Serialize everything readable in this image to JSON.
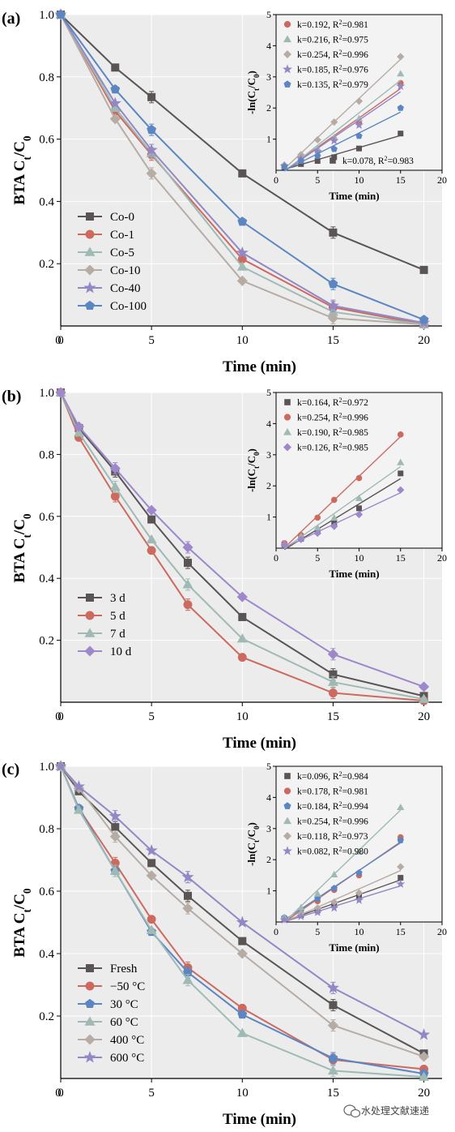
{
  "chart_data": [
    {
      "type": "line",
      "panel_label": "(a)",
      "xlabel": "Time (min)",
      "ylabel": "BTA C_t/C_0",
      "xlim": [
        0,
        21
      ],
      "ylim": [
        0,
        1.0
      ],
      "xticks": [
        0,
        5,
        10,
        15,
        20
      ],
      "yticks": [
        0.2,
        0.4,
        0.6,
        0.8,
        1.0
      ],
      "grid": true,
      "legend_position": "lower-left",
      "x": [
        0,
        3,
        5,
        10,
        15,
        20
      ],
      "series": [
        {
          "name": "Co-0",
          "color": "#5a5454",
          "marker": "square",
          "values": [
            1.0,
            0.83,
            0.735,
            0.49,
            0.3,
            0.18
          ]
        },
        {
          "name": "Co-1",
          "color": "#cc6a60",
          "marker": "circle",
          "values": [
            1.0,
            0.69,
            0.55,
            0.215,
            0.06,
            0.005
          ]
        },
        {
          "name": "Co-5",
          "color": "#9fbab4",
          "marker": "triangle",
          "values": [
            1.0,
            0.7,
            0.555,
            0.19,
            0.045,
            0.005
          ]
        },
        {
          "name": "Co-10",
          "color": "#b7aca4",
          "marker": "diamond",
          "values": [
            1.0,
            0.665,
            0.49,
            0.145,
            0.025,
            0.005
          ]
        },
        {
          "name": "Co-40",
          "color": "#9288c6",
          "marker": "star",
          "values": [
            1.0,
            0.715,
            0.565,
            0.235,
            0.065,
            0.01
          ]
        },
        {
          "name": "Co-100",
          "color": "#5c86c2",
          "marker": "pentagon",
          "values": [
            1.0,
            0.76,
            0.63,
            0.335,
            0.135,
            0.02
          ]
        }
      ],
      "inset": {
        "xlabel": "Time (min)",
        "ylabel": "-ln(C_t/C_0)",
        "xlim": [
          0,
          20
        ],
        "ylim": [
          0,
          5
        ],
        "xticks": [
          0,
          5,
          10,
          15,
          20
        ],
        "yticks": [
          1,
          2,
          3,
          4,
          5
        ],
        "x": [
          1,
          3,
          5,
          7,
          10,
          15
        ],
        "series": [
          {
            "name": "Co-0",
            "color": "#5a5454",
            "marker": "square",
            "label": "k=0.078, R²=0.983",
            "values": [
              0.1,
              0.2,
              0.3,
              0.42,
              0.7,
              1.18
            ]
          },
          {
            "name": "Co-1",
            "color": "#cc6a60",
            "marker": "circle",
            "label": "k=0.192, R²=0.981",
            "values": [
              0.15,
              0.4,
              0.62,
              1.0,
              1.53,
              2.8
            ]
          },
          {
            "name": "Co-5",
            "color": "#9fbab4",
            "marker": "triangle",
            "label": "k=0.216, R²=0.975",
            "values": [
              0.15,
              0.44,
              0.7,
              1.05,
              1.66,
              3.1
            ]
          },
          {
            "name": "Co-10",
            "color": "#b7aca4",
            "marker": "diamond",
            "label": "k=0.254, R²=0.996",
            "values": [
              0.17,
              0.5,
              0.98,
              1.55,
              2.22,
              3.65
            ]
          },
          {
            "name": "Co-40",
            "color": "#9288c6",
            "marker": "star",
            "label": "k=0.185, R²=0.976",
            "values": [
              0.14,
              0.38,
              0.6,
              0.95,
              1.45,
              2.7
            ]
          },
          {
            "name": "Co-100",
            "color": "#5c86c2",
            "marker": "pentagon",
            "label": "k=0.135, R²=0.979",
            "values": [
              0.12,
              0.3,
              0.46,
              0.68,
              1.1,
              2.0
            ]
          }
        ],
        "legend_order": [
          1,
          2,
          3,
          4,
          5
        ],
        "extra_label_series": 0
      }
    },
    {
      "type": "line",
      "panel_label": "(b)",
      "xlabel": "Time (min)",
      "ylabel": "BTA C_t/C_0",
      "xlim": [
        0,
        21
      ],
      "ylim": [
        0,
        1.0
      ],
      "xticks": [
        0,
        5,
        10,
        15,
        20
      ],
      "yticks": [
        0.2,
        0.4,
        0.6,
        0.8,
        1.0
      ],
      "grid": true,
      "legend_position": "lower-left",
      "x": [
        0,
        1,
        3,
        5,
        7,
        10,
        15,
        20
      ],
      "series": [
        {
          "name": "3 d",
          "color": "#5a5454",
          "marker": "square",
          "values": [
            1.0,
            0.885,
            0.745,
            0.59,
            0.45,
            0.275,
            0.09,
            0.02
          ]
        },
        {
          "name": "5 d",
          "color": "#cc6a60",
          "marker": "circle",
          "values": [
            1.0,
            0.855,
            0.665,
            0.49,
            0.315,
            0.145,
            0.03,
            0.005
          ]
        },
        {
          "name": "7 d",
          "color": "#9fbab4",
          "marker": "triangle",
          "values": [
            1.0,
            0.87,
            0.695,
            0.525,
            0.38,
            0.205,
            0.065,
            0.01
          ]
        },
        {
          "name": "10 d",
          "color": "#9d88cc",
          "marker": "diamond",
          "values": [
            1.0,
            0.89,
            0.755,
            0.62,
            0.5,
            0.34,
            0.155,
            0.05
          ]
        }
      ],
      "inset": {
        "xlabel": "Time (min)",
        "ylabel": "-ln(C_t/C_0)",
        "xlim": [
          0,
          20
        ],
        "ylim": [
          0,
          5
        ],
        "xticks": [
          0,
          5,
          10,
          15,
          20
        ],
        "yticks": [
          1,
          2,
          3,
          4,
          5
        ],
        "x": [
          1,
          3,
          5,
          7,
          10,
          15
        ],
        "series": [
          {
            "name": "3 d",
            "color": "#5a5454",
            "marker": "square",
            "label": "k=0.164, R²=0.972",
            "values": [
              0.12,
              0.3,
              0.53,
              0.8,
              1.28,
              2.4
            ]
          },
          {
            "name": "5 d",
            "color": "#cc6a60",
            "marker": "circle",
            "label": "k=0.254, R²=0.996",
            "values": [
              0.16,
              0.42,
              0.98,
              1.55,
              2.25,
              3.65
            ]
          },
          {
            "name": "7 d",
            "color": "#9fbab4",
            "marker": "triangle",
            "label": "k=0.190, R²=0.985",
            "values": [
              0.14,
              0.37,
              0.65,
              0.97,
              1.6,
              2.75
            ]
          },
          {
            "name": "10 d",
            "color": "#9d88cc",
            "marker": "diamond",
            "label": "k=0.126, R²=0.985",
            "values": [
              0.11,
              0.28,
              0.48,
              0.7,
              1.08,
              1.87
            ]
          }
        ],
        "legend_order": [
          0,
          1,
          2,
          3
        ]
      }
    },
    {
      "type": "line",
      "panel_label": "(c)",
      "xlabel": "Time (min)",
      "ylabel": "BTA C_t/C_0",
      "xlim": [
        0,
        21
      ],
      "ylim": [
        0,
        1.0
      ],
      "xticks": [
        0,
        5,
        10,
        15,
        20
      ],
      "yticks": [
        0.2,
        0.4,
        0.6,
        0.8,
        1.0
      ],
      "grid": true,
      "legend_position": "lower-left",
      "x": [
        0,
        1,
        3,
        5,
        7,
        10,
        15,
        20
      ],
      "series": [
        {
          "name": "Fresh",
          "color": "#5a5454",
          "marker": "square",
          "values": [
            1.0,
            0.92,
            0.805,
            0.69,
            0.585,
            0.44,
            0.235,
            0.08
          ]
        },
        {
          "name": "−50 °C",
          "color": "#cc6a60",
          "marker": "circle",
          "values": [
            1.0,
            0.865,
            0.69,
            0.51,
            0.355,
            0.225,
            0.06,
            0.03
          ]
        },
        {
          "name": "30 °C",
          "color": "#5c86c2",
          "marker": "pentagon",
          "values": [
            1.0,
            0.865,
            0.665,
            0.47,
            0.34,
            0.205,
            0.065,
            0.015
          ]
        },
        {
          "name": "60 °C",
          "color": "#9fbab4",
          "marker": "triangle",
          "values": [
            1.0,
            0.86,
            0.665,
            0.475,
            0.315,
            0.145,
            0.025,
            0.005
          ]
        },
        {
          "name": "400 °C",
          "color": "#b7aca4",
          "marker": "diamond",
          "values": [
            1.0,
            0.93,
            0.775,
            0.65,
            0.545,
            0.4,
            0.17,
            0.07
          ]
        },
        {
          "name": "600 °C",
          "color": "#9288c6",
          "marker": "star",
          "values": [
            1.0,
            0.935,
            0.84,
            0.73,
            0.645,
            0.5,
            0.29,
            0.14
          ]
        }
      ],
      "inset": {
        "xlabel": "Time (min)",
        "ylabel": "-ln(C_t/C_0)",
        "xlim": [
          0,
          20
        ],
        "ylim": [
          0,
          5
        ],
        "xticks": [
          0,
          5,
          10,
          15,
          20
        ],
        "yticks": [
          1,
          2,
          3,
          4,
          5
        ],
        "x": [
          1,
          3,
          5,
          7,
          10,
          15
        ],
        "series": [
          {
            "name": "Fresh",
            "color": "#5a5454",
            "marker": "square",
            "label": "k=0.096, R²=0.984",
            "values": [
              0.1,
              0.22,
              0.37,
              0.54,
              0.82,
              1.42
            ]
          },
          {
            "name": "−50 °C",
            "color": "#cc6a60",
            "marker": "circle",
            "label": "k=0.178, R²=0.981",
            "values": [
              0.14,
              0.37,
              0.67,
              1.03,
              1.5,
              2.72
            ]
          },
          {
            "name": "30 °C",
            "color": "#5c86c2",
            "marker": "pentagon",
            "label": "k=0.184, R²=0.994",
            "values": [
              0.14,
              0.4,
              0.75,
              1.08,
              1.58,
              2.62
            ]
          },
          {
            "name": "60 °C",
            "color": "#9fbab4",
            "marker": "triangle",
            "label": "k=0.254, R²=0.996",
            "values": [
              0.15,
              0.46,
              0.9,
              1.52,
              2.25,
              3.68
            ]
          },
          {
            "name": "400 °C",
            "color": "#b7aca4",
            "marker": "diamond",
            "label": "k=0.118, R²=0.973",
            "values": [
              0.08,
              0.27,
              0.45,
              0.64,
              0.93,
              1.77
            ]
          },
          {
            "name": "600 °C",
            "color": "#9288c6",
            "marker": "star",
            "label": "k=0.082, R²=0.980",
            "values": [
              0.07,
              0.18,
              0.31,
              0.45,
              0.7,
              1.22
            ]
          }
        ],
        "legend_order": [
          0,
          1,
          2,
          3,
          4,
          5
        ]
      }
    }
  ],
  "watermark": {
    "text": "水处理文献速递",
    "icon": "wechat-icon"
  }
}
